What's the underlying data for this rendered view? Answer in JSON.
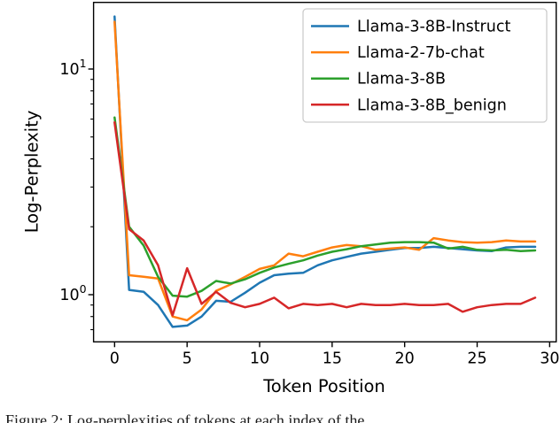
{
  "figure": {
    "caption_fragment": "Figure 2: Log-perplexities of tokens at each index of the"
  },
  "chart_data": {
    "type": "line",
    "title": "",
    "xlabel": "Token Position",
    "ylabel": "Log-Perplexity",
    "x_ticks": [
      0,
      5,
      10,
      15,
      20,
      25,
      30
    ],
    "xlim": [
      -1.45,
      30.45
    ],
    "y_scale": "log",
    "ylim": [
      0.62,
      19.7
    ],
    "y_major_ticks": [
      {
        "value": 1,
        "label_base": "10",
        "label_exp": "0"
      },
      {
        "value": 10,
        "label_base": "10",
        "label_exp": "1"
      }
    ],
    "y_minor_ticks": [
      0.7,
      0.8,
      0.9,
      2,
      3,
      4,
      5,
      6,
      7,
      8,
      9
    ],
    "grid": false,
    "legend_position": "upper right",
    "x": [
      0,
      1,
      2,
      3,
      4,
      5,
      6,
      7,
      8,
      9,
      10,
      11,
      12,
      13,
      14,
      15,
      16,
      17,
      18,
      19,
      20,
      21,
      22,
      23,
      24,
      25,
      26,
      27,
      28,
      29
    ],
    "series": [
      {
        "name": "Llama-3-8B-Instruct",
        "color": "#1f77b4",
        "values": [
          17.1,
          1.05,
          1.03,
          0.9,
          0.72,
          0.73,
          0.8,
          0.94,
          0.93,
          1.02,
          1.13,
          1.22,
          1.24,
          1.25,
          1.35,
          1.42,
          1.47,
          1.52,
          1.55,
          1.58,
          1.61,
          1.61,
          1.63,
          1.61,
          1.59,
          1.57,
          1.56,
          1.62,
          1.63,
          1.63
        ]
      },
      {
        "name": "Llama-2-7b-chat",
        "color": "#ff7f0e",
        "values": [
          16.2,
          1.22,
          1.2,
          1.18,
          0.8,
          0.77,
          0.86,
          1.04,
          1.11,
          1.2,
          1.3,
          1.35,
          1.52,
          1.48,
          1.55,
          1.62,
          1.66,
          1.64,
          1.58,
          1.6,
          1.62,
          1.58,
          1.78,
          1.74,
          1.71,
          1.7,
          1.71,
          1.74,
          1.72,
          1.72
        ]
      },
      {
        "name": "Llama-3-8B",
        "color": "#2ca02c",
        "values": [
          6.1,
          2.0,
          1.65,
          1.2,
          0.99,
          0.98,
          1.04,
          1.15,
          1.12,
          1.17,
          1.25,
          1.32,
          1.37,
          1.42,
          1.49,
          1.55,
          1.59,
          1.64,
          1.67,
          1.7,
          1.71,
          1.71,
          1.7,
          1.6,
          1.63,
          1.58,
          1.57,
          1.58,
          1.56,
          1.57
        ]
      },
      {
        "name": "Llama-3-8B_benign",
        "color": "#d62728",
        "values": [
          5.8,
          1.95,
          1.74,
          1.35,
          0.81,
          1.31,
          0.91,
          1.03,
          0.92,
          0.88,
          0.91,
          0.97,
          0.87,
          0.91,
          0.9,
          0.91,
          0.88,
          0.91,
          0.9,
          0.9,
          0.91,
          0.9,
          0.9,
          0.91,
          0.84,
          0.88,
          0.9,
          0.91,
          0.91,
          0.97
        ]
      }
    ],
    "axis_color": "#000000",
    "legend_border_color": "#cccccc"
  }
}
